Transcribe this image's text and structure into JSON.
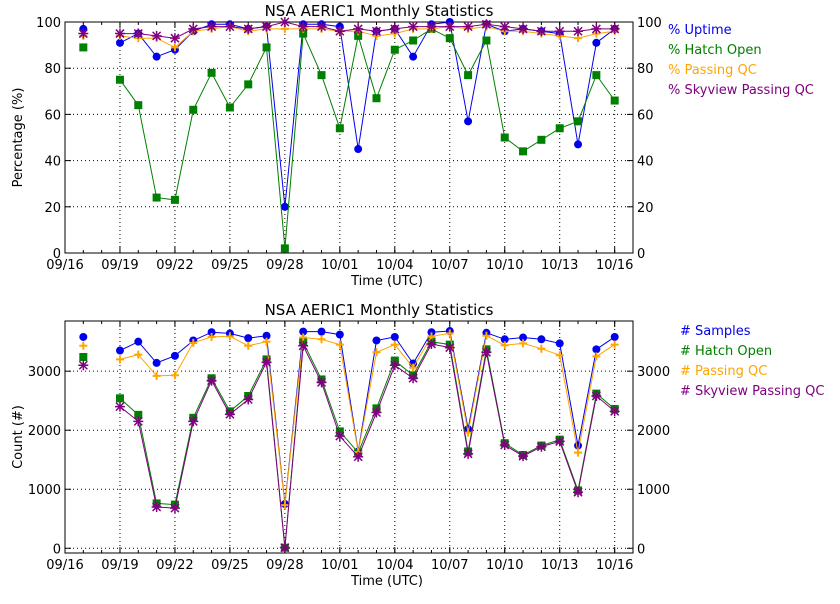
{
  "chart_data": [
    {
      "type": "line",
      "title": "NSA AERIC1 Monthly Statistics",
      "xlabel": "Time (UTC)",
      "ylabel": "Percentage (%)",
      "xticks": [
        "09/16",
        "09/19",
        "09/22",
        "09/25",
        "09/28",
        "10/01",
        "10/04",
        "10/07",
        "10/10",
        "10/13",
        "10/16"
      ],
      "yticks": [
        "0",
        "20",
        "40",
        "60",
        "80",
        "100"
      ],
      "ylim": [
        0,
        100
      ],
      "grid": true,
      "legend_placement": "right",
      "x": [
        "09/17",
        "09/19",
        "09/20",
        "09/21",
        "09/22",
        "09/23",
        "09/24",
        "09/25",
        "09/26",
        "09/27",
        "09/28",
        "09/29",
        "09/30",
        "10/01",
        "10/02",
        "10/03",
        "10/04",
        "10/05",
        "10/06",
        "10/07",
        "10/08",
        "10/09",
        "10/10",
        "10/11",
        "10/12",
        "10/13",
        "10/14",
        "10/15",
        "10/16"
      ],
      "series": [
        {
          "name": "% Uptime",
          "color": "#0000ee",
          "marker": "circle",
          "values": [
            97,
            91,
            95,
            85,
            88,
            96,
            99,
            99,
            97,
            98,
            20,
            99,
            99,
            98,
            45,
            96,
            97,
            85,
            99,
            100,
            57,
            99,
            96,
            97,
            96,
            95,
            47,
            91,
            97
          ]
        },
        {
          "name": "% Hatch Open",
          "color": "#008000",
          "marker": "square",
          "values": [
            89,
            75,
            64,
            24,
            23,
            62,
            78,
            63,
            73,
            89,
            2,
            95,
            77,
            54,
            94,
            67,
            88,
            92,
            97,
            93,
            77,
            92,
            50,
            44,
            49,
            54,
            57,
            77,
            66
          ]
        },
        {
          "name": "% Passing QC",
          "color": "#ffa500",
          "marker": "plus",
          "values": [
            94,
            94,
            93,
            93,
            89,
            96,
            97,
            98,
            96,
            97,
            97,
            97,
            97,
            96,
            96,
            94,
            95,
            97,
            97,
            98,
            97,
            98,
            96,
            96,
            95,
            94,
            93,
            95,
            96
          ]
        },
        {
          "name": "% Skyview Passing QC",
          "color": "#800080",
          "marker": "asterisk",
          "values": [
            95,
            95,
            95,
            94,
            93,
            97,
            98,
            98,
            97,
            98,
            100,
            98,
            98,
            96,
            97,
            96,
            97,
            98,
            98,
            98,
            98,
            99,
            98,
            97,
            96,
            96,
            96,
            97,
            97
          ]
        }
      ]
    },
    {
      "type": "line",
      "title": "NSA AERIC1 Monthly Statistics",
      "xlabel": "Time (UTC)",
      "ylabel": "Count (#)",
      "xticks": [
        "09/16",
        "09/19",
        "09/22",
        "09/25",
        "09/28",
        "10/01",
        "10/04",
        "10/07",
        "10/10",
        "10/13",
        "10/16"
      ],
      "yticks": [
        "0",
        "1000",
        "2000",
        "3000"
      ],
      "ylim": [
        -80,
        3850
      ],
      "grid": true,
      "legend_placement": "right",
      "x": [
        "09/17",
        "09/19",
        "09/20",
        "09/21",
        "09/22",
        "09/23",
        "09/24",
        "09/25",
        "09/26",
        "09/27",
        "09/28",
        "09/29",
        "09/30",
        "10/01",
        "10/02",
        "10/03",
        "10/04",
        "10/05",
        "10/06",
        "10/07",
        "10/08",
        "10/09",
        "10/10",
        "10/11",
        "10/12",
        "10/13",
        "10/14",
        "10/15",
        "10/16"
      ],
      "series": [
        {
          "name": "# Samples",
          "color": "#0000ee",
          "marker": "circle",
          "values": [
            3580,
            3350,
            3500,
            3140,
            3260,
            3520,
            3660,
            3640,
            3560,
            3600,
            750,
            3670,
            3670,
            3620,
            1640,
            3520,
            3580,
            3130,
            3660,
            3680,
            2020,
            3650,
            3540,
            3570,
            3540,
            3470,
            1740,
            3370,
            3580
          ]
        },
        {
          "name": "# Hatch Open",
          "color": "#008000",
          "marker": "square",
          "values": [
            3240,
            2540,
            2260,
            760,
            740,
            2210,
            2880,
            2320,
            2580,
            3200,
            10,
            3490,
            2860,
            1980,
            1620,
            2370,
            3180,
            2930,
            3500,
            3450,
            1640,
            3370,
            1780,
            1580,
            1740,
            1840,
            980,
            2620,
            2360
          ]
        },
        {
          "name": "# Passing QC",
          "color": "#ffa500",
          "marker": "plus",
          "values": [
            3430,
            3200,
            3280,
            2920,
            2930,
            3480,
            3580,
            3590,
            3430,
            3500,
            730,
            3570,
            3540,
            3450,
            1630,
            3320,
            3450,
            3060,
            3590,
            3640,
            1960,
            3600,
            3440,
            3470,
            3380,
            3270,
            1620,
            3250,
            3450
          ]
        },
        {
          "name": "# Skyview Passing QC",
          "color": "#800080",
          "marker": "asterisk",
          "values": [
            3100,
            2400,
            2150,
            700,
            680,
            2150,
            2840,
            2270,
            2520,
            3150,
            10,
            3430,
            2810,
            1900,
            1550,
            2300,
            3100,
            2880,
            3460,
            3400,
            1600,
            3320,
            1750,
            1560,
            1720,
            1810,
            950,
            2580,
            2320
          ]
        }
      ]
    }
  ]
}
